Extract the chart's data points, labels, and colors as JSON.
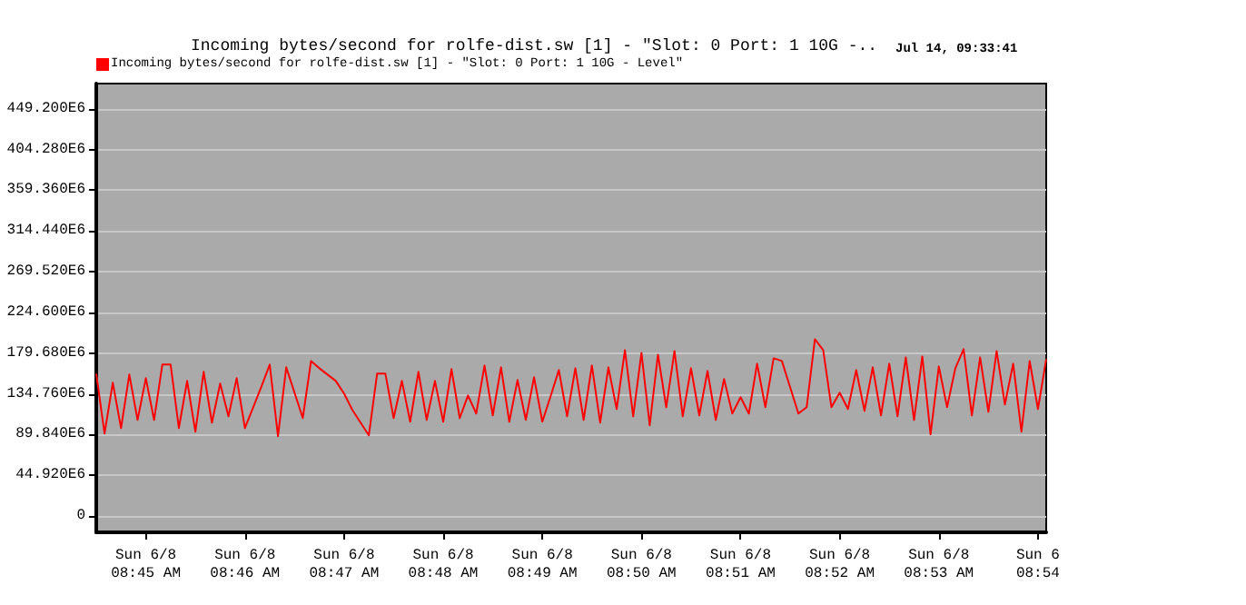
{
  "chart_data": {
    "type": "line",
    "title": "Incoming bytes/second for rolfe-dist.sw [1] - \"Slot: 0 Port: 1 10G -..",
    "subtitle": "Jul 14, 09:33:41",
    "categories": [
      null,
      null,
      null,
      null,
      null,
      null,
      "Sun 6/8\n08:45 AM",
      null,
      null,
      null,
      null,
      null,
      null,
      null,
      null,
      null,
      null,
      null,
      "Sun 6/8\n08:46 AM",
      null,
      null,
      null,
      null,
      null,
      null,
      null,
      null,
      null,
      null,
      null,
      "Sun 6/8\n08:47 AM",
      null,
      null,
      null,
      null,
      null,
      null,
      null,
      null,
      null,
      null,
      null,
      "Sun 6/8\n08:48 AM",
      null,
      null,
      null,
      null,
      null,
      null,
      null,
      null,
      null,
      null,
      null,
      "Sun 6/8\n08:49 AM",
      null,
      null,
      null,
      null,
      null,
      null,
      null,
      null,
      null,
      null,
      null,
      "Sun 6/8\n08:50 AM",
      null,
      null,
      null,
      null,
      null,
      null,
      null,
      null,
      null,
      null,
      null,
      "Sun 6/8\n08:51 AM",
      null,
      null,
      null,
      null,
      null,
      null,
      null,
      null,
      null,
      null,
      null,
      "Sun 6/8\n08:52 AM",
      null,
      null,
      null,
      null,
      null,
      null,
      null,
      null,
      null,
      null,
      null,
      "Sun 6/8\n08:53 AM",
      null,
      null,
      null,
      null,
      null,
      null,
      null,
      null,
      null,
      null,
      null,
      "Sun 6\n08:54",
      null
    ],
    "series": [
      {
        "name": "Incoming bytes/second for rolfe-dist.sw [1] - \"Slot: 0 Port: 1 10G - Level\"",
        "color": "#ff0000",
        "values": [
          157000000.0,
          91000000.0,
          147000000.0,
          97000000.0,
          156000000.0,
          106000000.0,
          152000000.0,
          106000000.0,
          167000000.0,
          167000000.0,
          97000000.0,
          149000000.0,
          93000000.0,
          159000000.0,
          103000000.0,
          146000000.0,
          110000000.0,
          152000000.0,
          97000000.0,
          120000000.0,
          143000000.0,
          167000000.0,
          88000000.0,
          164000000.0,
          136000000.0,
          108000000.0,
          171000000.0,
          163000000.0,
          156000000.0,
          149000000.0,
          135000000.0,
          117000000.0,
          103000000.0,
          89000000.0,
          157000000.0,
          157000000.0,
          108000000.0,
          149000000.0,
          104000000.0,
          159000000.0,
          106000000.0,
          149000000.0,
          104000000.0,
          162000000.0,
          108000000.0,
          133000000.0,
          113000000.0,
          166000000.0,
          111000000.0,
          164000000.0,
          104000000.0,
          150000000.0,
          106000000.0,
          153000000.0,
          104000000.0,
          132000000.0,
          161000000.0,
          110000000.0,
          163000000.0,
          106000000.0,
          166000000.0,
          103000000.0,
          164000000.0,
          118000000.0,
          183000000.0,
          110000000.0,
          180000000.0,
          100000000.0,
          178000000.0,
          120000000.0,
          182000000.0,
          110000000.0,
          163000000.0,
          111000000.0,
          160000000.0,
          106000000.0,
          151000000.0,
          113000000.0,
          131000000.0,
          113000000.0,
          168000000.0,
          120000000.0,
          174000000.0,
          171000000.0,
          142000000.0,
          113000000.0,
          120000000.0,
          195000000.0,
          183000000.0,
          120000000.0,
          136000000.0,
          118000000.0,
          161000000.0,
          116000000.0,
          164000000.0,
          111000000.0,
          168000000.0,
          110000000.0,
          175000000.0,
          106000000.0,
          176000000.0,
          90000000.0,
          165000000.0,
          120000000.0,
          163000000.0,
          184000000.0,
          111000000.0,
          175000000.0,
          115000000.0,
          182000000.0,
          123000000.0,
          168000000.0,
          93000000.0,
          171000000.0,
          118000000.0,
          173000000.0
        ]
      }
    ],
    "ylim": [
      -18000000.0,
      477000000.0
    ],
    "yticks": [
      0,
      {
        "value": 44920000.0,
        "label": "44.920E6"
      },
      {
        "value": 89840000.0,
        "label": "89.840E6"
      },
      {
        "value": 134760000.0,
        "label": "134.760E6"
      },
      {
        "value": 179680000.0,
        "label": "179.680E6"
      },
      {
        "value": 224600000.0,
        "label": "224.600E6"
      },
      {
        "value": 269520000.0,
        "label": "269.520E6"
      },
      {
        "value": 314440000.0,
        "label": "314.440E6"
      },
      {
        "value": 359360000.0,
        "label": "359.360E6"
      },
      {
        "value": 404280000.0,
        "label": "404.280E6"
      },
      {
        "value": 449200000.0,
        "label": "449.200E6"
      }
    ],
    "grid": "y",
    "legend": "top left",
    "marker": "none",
    "line_style": "solid"
  }
}
